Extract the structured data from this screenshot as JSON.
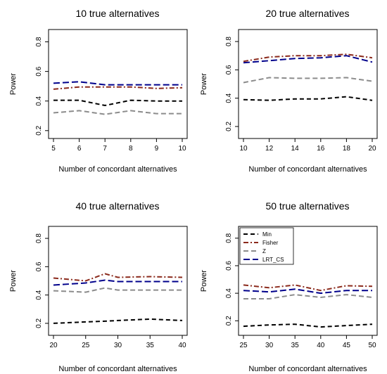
{
  "chart_data": [
    {
      "type": "line",
      "title": "10 true alternatives",
      "xlabel": "Number of concordant alternatives",
      "ylabel": "Power",
      "x": [
        5,
        6,
        7,
        8,
        9,
        10
      ],
      "xticks": [
        "5",
        "6",
        "7",
        "8",
        "9",
        "10"
      ],
      "xlim": [
        5,
        10
      ],
      "yticks": [
        "0.2",
        "0.4",
        "0.6",
        "0.8"
      ],
      "ylim": [
        0.18,
        0.85
      ],
      "series": [
        {
          "name": "Min",
          "values": [
            0.405,
            0.405,
            0.37,
            0.405,
            0.4,
            0.4
          ]
        },
        {
          "name": "Fisher",
          "values": [
            0.48,
            0.495,
            0.495,
            0.495,
            0.485,
            0.49
          ]
        },
        {
          "name": "Z",
          "values": [
            0.32,
            0.335,
            0.31,
            0.335,
            0.315,
            0.315
          ]
        },
        {
          "name": "LRT_CS",
          "values": [
            0.52,
            0.53,
            0.51,
            0.51,
            0.51,
            0.51
          ]
        }
      ]
    },
    {
      "type": "line",
      "title": "20 true alternatives",
      "xlabel": "Number of concordant alternatives",
      "ylabel": "Power",
      "x": [
        10,
        12,
        14,
        16,
        18,
        20
      ],
      "xticks": [
        "10",
        "12",
        "14",
        "16",
        "18",
        "20"
      ],
      "xlim": [
        10,
        20
      ],
      "yticks": [
        "0.2",
        "0.4",
        "0.6",
        "0.8"
      ],
      "ylim": [
        0.15,
        0.85
      ],
      "series": [
        {
          "name": "Min",
          "values": [
            0.39,
            0.385,
            0.395,
            0.395,
            0.41,
            0.385
          ]
        },
        {
          "name": "Fisher",
          "values": [
            0.66,
            0.69,
            0.7,
            0.7,
            0.71,
            0.685
          ]
        },
        {
          "name": "Z",
          "values": [
            0.51,
            0.545,
            0.54,
            0.54,
            0.545,
            0.52
          ]
        },
        {
          "name": "LRT_CS",
          "values": [
            0.65,
            0.665,
            0.68,
            0.685,
            0.7,
            0.655
          ]
        }
      ]
    },
    {
      "type": "line",
      "title": "40 true alternatives",
      "xlabel": "Number of concordant alternatives",
      "ylabel": "Power",
      "x": [
        20,
        25,
        28,
        30,
        35,
        40
      ],
      "xticks": [
        "20",
        "25",
        "30",
        "35",
        "40"
      ],
      "xlim": [
        20,
        40
      ],
      "yticks": [
        "0.2",
        "0.4",
        "0.6",
        "0.8"
      ],
      "ylim": [
        0.15,
        0.85
      ],
      "series": [
        {
          "name": "Min",
          "values": [
            0.2,
            0.21,
            0.215,
            0.22,
            0.23,
            0.22
          ]
        },
        {
          "name": "Fisher",
          "values": [
            0.52,
            0.5,
            0.55,
            0.525,
            0.53,
            0.525
          ]
        },
        {
          "name": "Z",
          "values": [
            0.43,
            0.42,
            0.45,
            0.435,
            0.435,
            0.435
          ]
        },
        {
          "name": "LRT_CS",
          "values": [
            0.47,
            0.485,
            0.505,
            0.495,
            0.495,
            0.495
          ]
        }
      ]
    },
    {
      "type": "line",
      "title": "50 true alternatives",
      "xlabel": "Number of concordant alternatives",
      "ylabel": "Power",
      "x": [
        25,
        30,
        35,
        40,
        45,
        50
      ],
      "xticks": [
        "25",
        "30",
        "35",
        "40",
        "45",
        "50"
      ],
      "xlim": [
        25,
        50
      ],
      "yticks": [
        "0.2",
        "0.4",
        "0.6",
        "0.8"
      ],
      "ylim": [
        0.13,
        0.85
      ],
      "legend_position": "top-left",
      "series": [
        {
          "name": "Min",
          "values": [
            0.16,
            0.17,
            0.175,
            0.155,
            0.165,
            0.175
          ]
        },
        {
          "name": "Fisher",
          "values": [
            0.46,
            0.44,
            0.46,
            0.42,
            0.455,
            0.45
          ]
        },
        {
          "name": "Z",
          "values": [
            0.36,
            0.36,
            0.39,
            0.37,
            0.39,
            0.37
          ]
        },
        {
          "name": "LRT_CS",
          "values": [
            0.42,
            0.41,
            0.43,
            0.4,
            0.42,
            0.42
          ]
        }
      ]
    }
  ],
  "styles": {
    "Min": {
      "color": "#000000",
      "dash": "6,4"
    },
    "Fisher": {
      "color": "#8b2a1c",
      "dash": "7,3,2,3"
    },
    "Z": {
      "color": "#8c8c8c",
      "dash": "7,4"
    },
    "LRT_CS": {
      "color": "#00008b",
      "dash": "9,4"
    }
  }
}
